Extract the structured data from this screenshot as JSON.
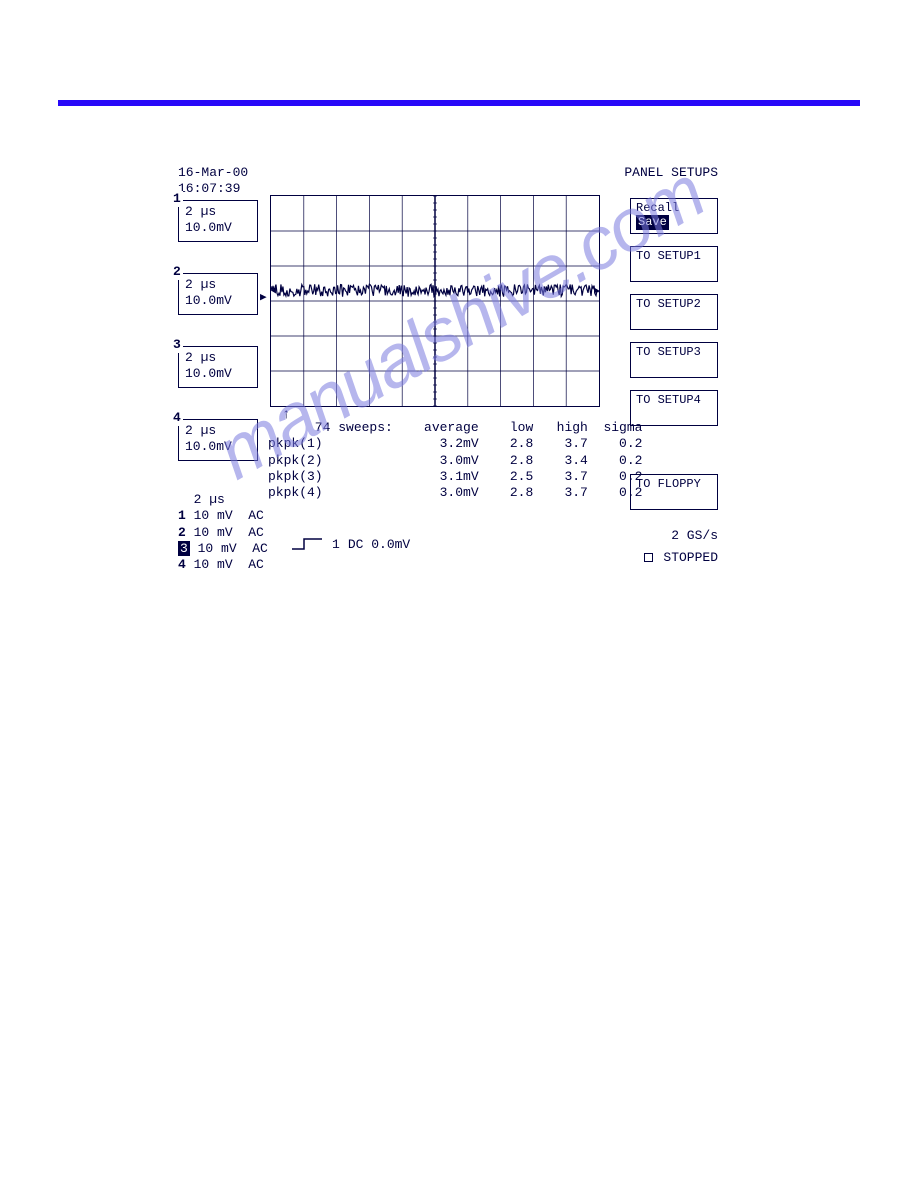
{
  "bar_color": "#2808f8",
  "datetime": {
    "date": "16-Mar-00",
    "time": "16:07:39"
  },
  "panel_title": "PANEL SETUPS",
  "channels": [
    {
      "num": "1",
      "timebase": "2 µs",
      "vdiv": "10.0mV"
    },
    {
      "num": "2",
      "timebase": "2 µs",
      "vdiv": "10.0mV"
    },
    {
      "num": "3",
      "timebase": "2 µs",
      "vdiv": "10.0mV"
    },
    {
      "num": "4",
      "timebase": "2 µs",
      "vdiv": "10.0mV"
    }
  ],
  "right_buttons": {
    "recall": {
      "label": "Recall",
      "highlighted": "Save"
    },
    "setup1": "TO SETUP1",
    "setup2": "TO SETUP2",
    "setup3": "TO SETUP3",
    "setup4": "TO SETUP4",
    "floppy": "TO FLOPPY"
  },
  "grid": {
    "cols": 10,
    "rows": 6,
    "line_color": "#000040",
    "bg": "#ffffff",
    "waveform_row": 2.7,
    "waveform_color": "#000040",
    "waveform_noise_pct": 3
  },
  "stats": {
    "sweep_label": "74 sweeps:",
    "headers": [
      "average",
      "low",
      "high",
      "sigma"
    ],
    "rows": [
      {
        "name": "pkpk(1)",
        "average": "3.2mV",
        "low": "2.8",
        "high": "3.7",
        "sigma": "0.2"
      },
      {
        "name": "pkpk(2)",
        "average": "3.0mV",
        "low": "2.8",
        "high": "3.4",
        "sigma": "0.2"
      },
      {
        "name": "pkpk(3)",
        "average": "3.1mV",
        "low": "2.5",
        "high": "3.7",
        "sigma": "0.2"
      },
      {
        "name": "pkpk(4)",
        "average": "3.0mV",
        "low": "2.8",
        "high": "3.7",
        "sigma": "0.2"
      }
    ]
  },
  "bottom": {
    "timebase": "2 µs",
    "ch_settings": [
      {
        "num": "1",
        "scale": "10 mV",
        "coupling": "AC",
        "inv": false
      },
      {
        "num": "2",
        "scale": "10 mV",
        "coupling": "AC",
        "inv": false
      },
      {
        "num": "3",
        "scale": "10 mV",
        "coupling": "AC",
        "inv": true
      },
      {
        "num": "4",
        "scale": "10 mV",
        "coupling": "AC",
        "inv": false
      }
    ],
    "trigger": {
      "ch": "1",
      "level": "DC 0.0mV"
    },
    "sample_rate": "2 GS/s",
    "status": "STOPPED"
  },
  "watermark": "manualshive.com"
}
